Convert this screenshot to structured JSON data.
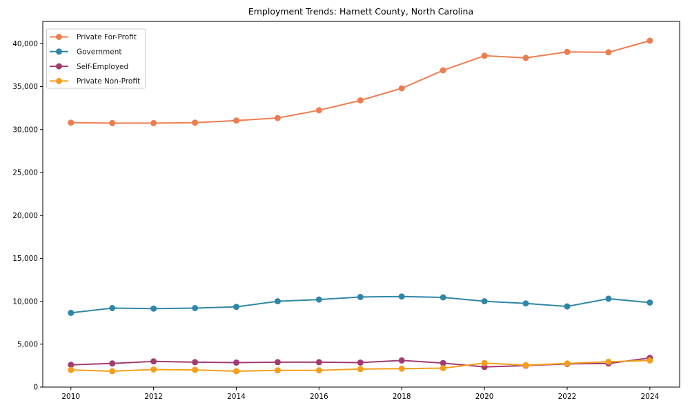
{
  "chart_data": {
    "type": "line",
    "title": "Employment Trends: Harnett County, North Carolina",
    "xlabel": "",
    "ylabel": "",
    "x": [
      2010,
      2011,
      2012,
      2013,
      2014,
      2015,
      2016,
      2017,
      2018,
      2019,
      2020,
      2021,
      2022,
      2023,
      2024
    ],
    "series": [
      {
        "name": "Private For-Profit",
        "color": "#ed7d4e",
        "values": [
          30800,
          30750,
          30750,
          30800,
          31050,
          31350,
          32250,
          33400,
          34800,
          36900,
          38600,
          38350,
          39050,
          39000,
          40350
        ]
      },
      {
        "name": "Government",
        "color": "#2e86a8",
        "values": [
          8650,
          9200,
          9150,
          9200,
          9350,
          10000,
          10200,
          10500,
          10550,
          10450,
          10000,
          9750,
          9400,
          10300,
          9850
        ]
      },
      {
        "name": "Self-Employed",
        "color": "#a23b72",
        "values": [
          2600,
          2750,
          3000,
          2900,
          2850,
          2900,
          2900,
          2850,
          3100,
          2800,
          2350,
          2500,
          2700,
          2750,
          3400
        ]
      },
      {
        "name": "Private Non-Profit",
        "color": "#f49e1b",
        "values": [
          2000,
          1850,
          2050,
          2000,
          1850,
          1950,
          1950,
          2100,
          2150,
          2200,
          2800,
          2550,
          2750,
          2950,
          3100
        ]
      }
    ],
    "xticks": [
      2010,
      2012,
      2014,
      2016,
      2018,
      2020,
      2022,
      2024
    ],
    "yticks": [
      0,
      5000,
      10000,
      15000,
      20000,
      25000,
      30000,
      35000,
      40000
    ],
    "xlim": [
      2009.32,
      2024.72
    ],
    "ylim": [
      0,
      42600
    ],
    "grid": false,
    "marker": "o",
    "legend_position": "upper left"
  }
}
